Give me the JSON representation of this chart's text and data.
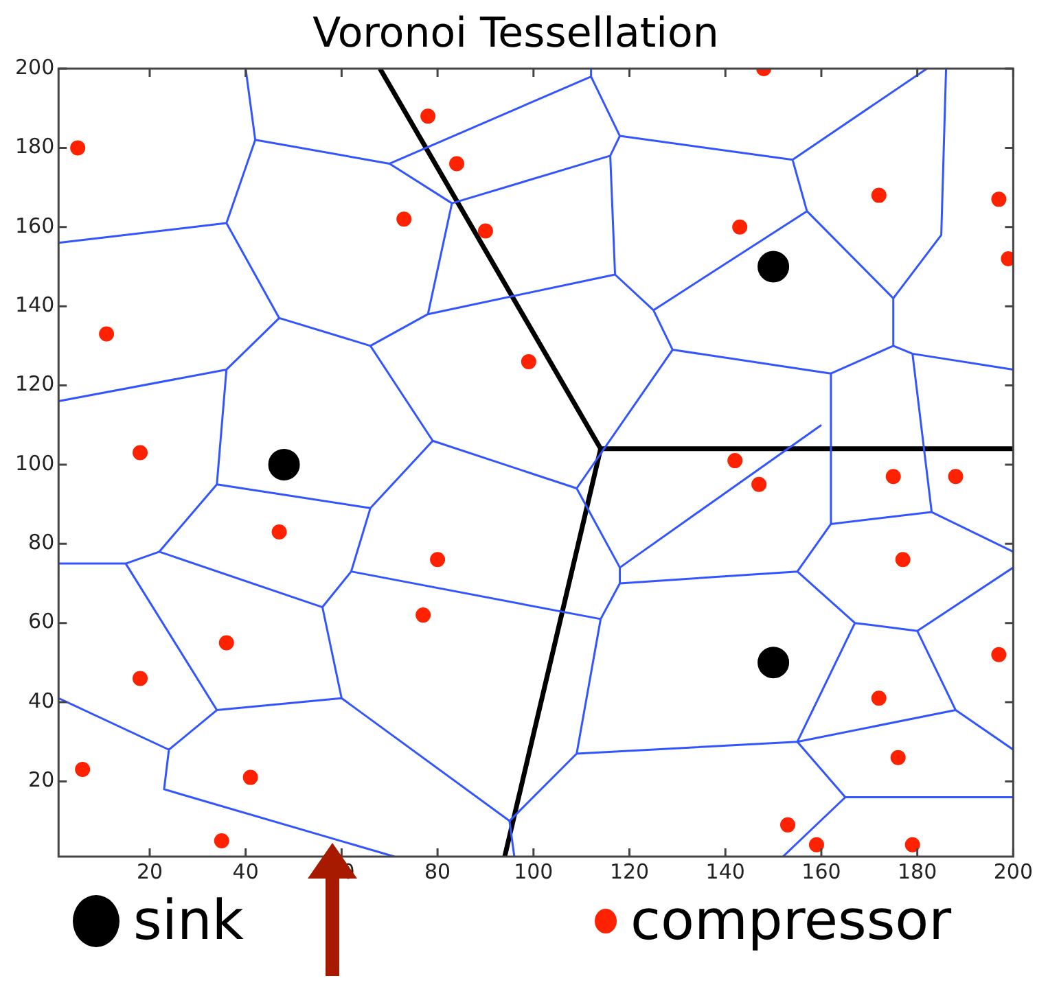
{
  "chart_data": {
    "type": "scatter",
    "title": "Voronoi Tessellation",
    "xlim": [
      1,
      200
    ],
    "ylim": [
      1,
      200
    ],
    "xticks": [
      20,
      40,
      60,
      80,
      100,
      120,
      140,
      160,
      180,
      200
    ],
    "yticks": [
      20,
      40,
      60,
      80,
      100,
      120,
      140,
      160,
      180,
      200
    ],
    "grid": false,
    "legend": "bottom",
    "marker": "circle",
    "series": [
      {
        "type": "line",
        "marker": "none",
        "color": "#3355ff",
        "x": [
          40,
          42,
          36,
          1,
          null,
          42,
          70,
          83,
          78,
          66,
          47,
          36,
          null,
          70,
          112,
          112,
          null,
          112,
          118,
          116,
          83,
          null,
          116,
          117,
          78,
          null,
          47,
          36,
          1,
          null,
          36,
          34,
          66,
          79,
          66,
          null,
          79,
          109,
          129,
          125,
          117,
          null,
          125,
          157,
          154,
          118,
          null,
          154,
          182,
          null,
          157,
          175,
          185,
          186,
          null,
          175,
          175,
          162,
          129,
          null,
          175,
          179,
          200,
          null,
          162,
          162,
          183,
          179,
          null,
          183,
          200,
          null,
          109,
          118,
          160,
          null,
          118,
          118,
          114,
          62,
          66,
          null,
          34,
          22,
          15,
          1,
          null,
          22,
          56,
          60,
          34,
          15,
          null,
          34,
          24,
          1,
          null,
          24,
          23,
          71,
          null,
          60,
          95,
          96,
          null,
          95,
          109,
          114,
          null,
          118,
          155,
          162,
          null,
          155,
          167,
          180,
          200,
          null,
          180,
          188,
          200,
          null,
          167,
          155,
          109,
          null,
          155,
          188,
          null,
          155,
          165,
          200,
          null,
          165,
          152,
          null,
          62,
          56
        ],
        "values": [
          200,
          182,
          161,
          156,
          null,
          182,
          176,
          166,
          138,
          130,
          137,
          161,
          null,
          176,
          198,
          200,
          null,
          198,
          183,
          178,
          166,
          null,
          178,
          148,
          138,
          null,
          137,
          124,
          116,
          null,
          124,
          95,
          89,
          106,
          130,
          null,
          106,
          94,
          129,
          139,
          148,
          null,
          139,
          164,
          177,
          183,
          null,
          177,
          200,
          null,
          164,
          142,
          158,
          200,
          null,
          142,
          130,
          123,
          129,
          null,
          130,
          128,
          124,
          null,
          123,
          85,
          88,
          128,
          null,
          88,
          78,
          null,
          94,
          74,
          110,
          null,
          74,
          70,
          61,
          73,
          89,
          null,
          95,
          78,
          75,
          75,
          null,
          78,
          64,
          41,
          38,
          75,
          null,
          38,
          28,
          41,
          null,
          28,
          18,
          1,
          null,
          41,
          10,
          1,
          null,
          10,
          27,
          61,
          null,
          70,
          73,
          85,
          null,
          73,
          60,
          58,
          74,
          null,
          58,
          38,
          28,
          null,
          60,
          30,
          27,
          null,
          30,
          38,
          null,
          30,
          16,
          16,
          null,
          16,
          1,
          null,
          73,
          64
        ]
      },
      {
        "type": "line",
        "marker": "none",
        "color": "#000000",
        "x": [
          68,
          114,
          200,
          null,
          114,
          94
        ],
        "values": [
          200,
          104,
          104,
          null,
          104,
          1
        ]
      },
      {
        "name": "sink",
        "color": "#000000",
        "x": [
          48,
          150,
          150
        ],
        "values": [
          100,
          150,
          50
        ]
      },
      {
        "name": "compressor",
        "color": "#ff2200",
        "x": [
          5,
          11,
          18,
          47,
          36,
          18,
          6,
          41,
          35,
          78,
          84,
          73,
          90,
          99,
          80,
          77,
          148,
          143,
          172,
          197,
          199,
          142,
          147,
          175,
          188,
          177,
          197,
          172,
          176,
          153,
          159,
          179
        ],
        "values": [
          180,
          133,
          103,
          83,
          55,
          46,
          23,
          21,
          5,
          188,
          176,
          162,
          159,
          126,
          76,
          62,
          200,
          160,
          168,
          167,
          152,
          101,
          95,
          97,
          97,
          76,
          52,
          41,
          26,
          9,
          4,
          4
        ]
      }
    ]
  }
}
